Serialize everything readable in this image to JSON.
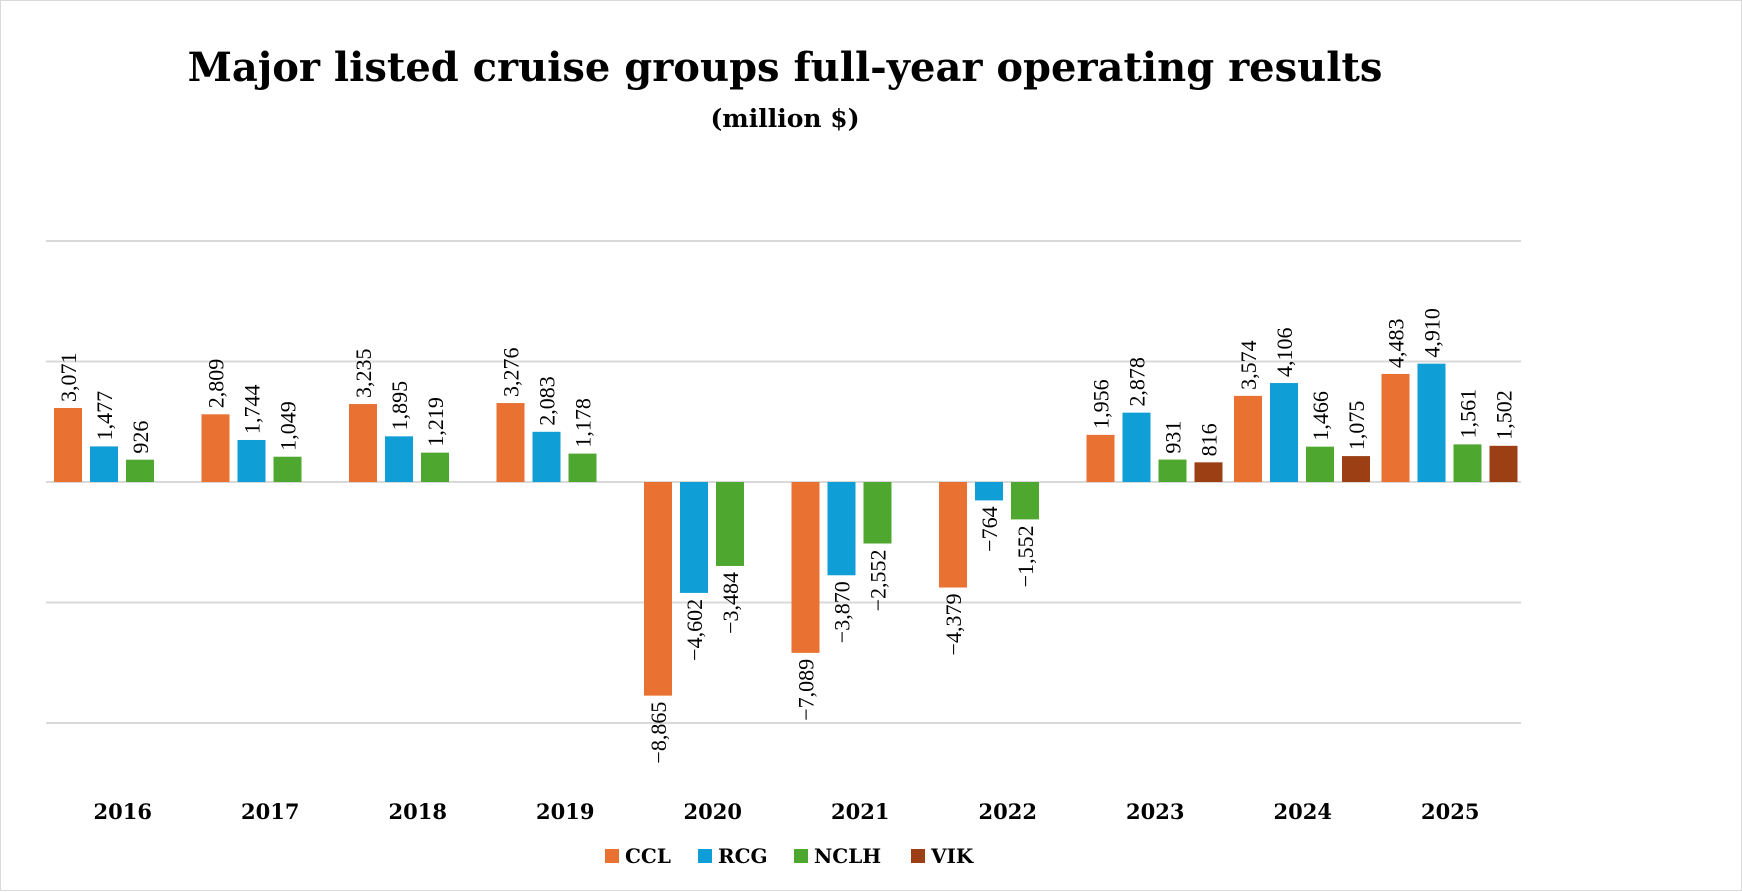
{
  "chart_data": {
    "type": "bar",
    "title": "Major listed cruise groups full-year operating results",
    "subtitle": "(million $)",
    "categories": [
      "2016",
      "2017",
      "2018",
      "2019",
      "2020",
      "2021",
      "2022",
      "2023",
      "2024",
      "2025"
    ],
    "series": [
      {
        "name": "CCL",
        "color": "#E97132",
        "values": [
          3071,
          2809,
          3235,
          3276,
          -8865,
          -7089,
          -4379,
          1956,
          3574,
          4483
        ],
        "labels": [
          "3,071",
          "2,809",
          "3,235",
          "3,276",
          "-8,865",
          "-7,089",
          "-4,379",
          "1,956",
          "3,574",
          "4,483"
        ]
      },
      {
        "name": "RCG",
        "color": "#0F9ED5",
        "values": [
          1477,
          1744,
          1895,
          2083,
          -4602,
          -3870,
          -764,
          2878,
          4106,
          4910
        ],
        "labels": [
          "1,477",
          "1,744",
          "1,895",
          "2,083",
          "-4,602",
          "-3,870",
          "-764",
          "2,878",
          "4,106",
          "4,910"
        ]
      },
      {
        "name": "NCLH",
        "color": "#4EA72E",
        "values": [
          926,
          1049,
          1219,
          1178,
          -3484,
          -2552,
          -1552,
          931,
          1466,
          1561
        ],
        "labels": [
          "926",
          "1,049",
          "1,219",
          "1,178",
          "-3,484",
          "-2,552",
          "-1,552",
          "931",
          "1,466",
          "1,561"
        ]
      },
      {
        "name": "VIK",
        "color": "#9C3F15",
        "values": [
          null,
          null,
          null,
          null,
          null,
          null,
          null,
          816,
          1075,
          1502
        ],
        "labels": [
          null,
          null,
          null,
          null,
          null,
          null,
          null,
          "816",
          "1,075",
          "1,502"
        ]
      }
    ],
    "ylim": [
      -10000,
      10000
    ],
    "gridlines": [
      10000,
      5000,
      0,
      -5000,
      -10000
    ],
    "grid": true,
    "y_axis_labels_shown": false,
    "legend": "bottom"
  }
}
